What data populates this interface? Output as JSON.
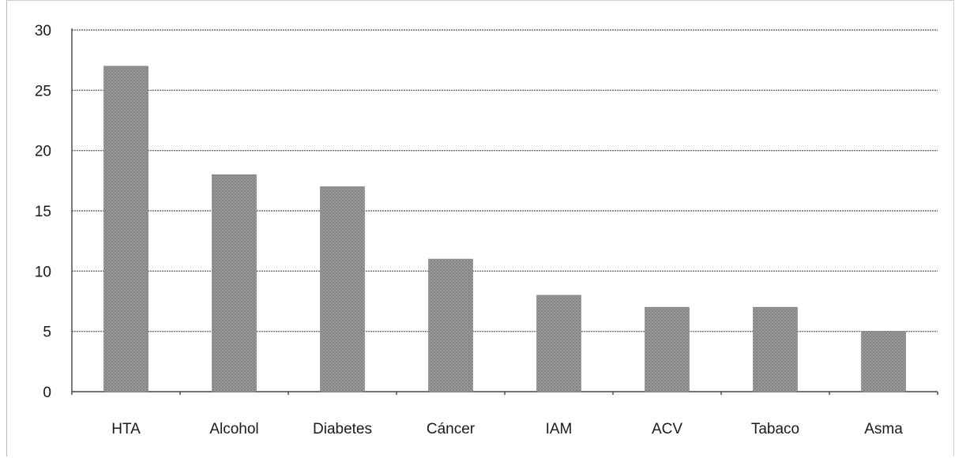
{
  "chart_data": {
    "type": "bar",
    "categories": [
      "HTA",
      "Alcohol",
      "Diabetes",
      "Cáncer",
      "IAM",
      "ACV",
      "Tabaco",
      "Asma"
    ],
    "values": [
      27,
      18,
      17,
      11,
      8,
      7,
      7,
      5
    ],
    "yticks": [
      "0",
      "5",
      "10",
      "15",
      "20",
      "25",
      "30"
    ],
    "ylim": [
      0,
      30
    ],
    "grid": true,
    "legend": "none",
    "bar_color": "#8c8c8c"
  }
}
